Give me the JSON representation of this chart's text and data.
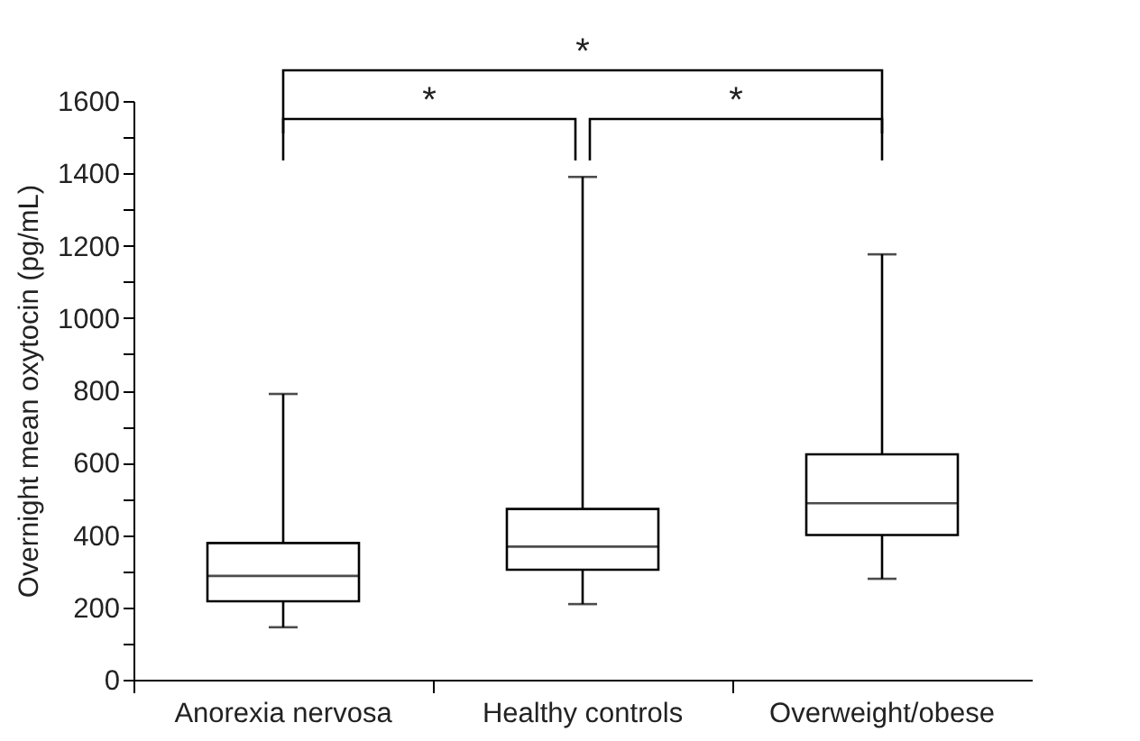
{
  "chart_data": {
    "type": "box",
    "ylabel": "Overnight mean oxytocin (pg/mL)",
    "categories": [
      "Anorexia nervosa",
      "Healthy  controls",
      "Overweight/obese"
    ],
    "boxes": [
      {
        "low": 145,
        "q1": 217,
        "median": 287,
        "q3": 378,
        "high": 790
      },
      {
        "low": 209,
        "q1": 304,
        "median": 368,
        "q3": 472,
        "high": 1390
      },
      {
        "low": 279,
        "q1": 400,
        "median": 488,
        "q3": 623,
        "high": 1176
      }
    ],
    "ylim": [
      0,
      1600
    ],
    "yticks": [
      0,
      {
        "value": 100,
        "label": null
      },
      200,
      {
        "value": 300,
        "label": null
      },
      400,
      {
        "value": 500,
        "label": null
      },
      600,
      {
        "value": 700,
        "label": null
      },
      800,
      {
        "value": 900,
        "label": null
      },
      1000,
      {
        "value": 1100,
        "label": null
      },
      1200,
      {
        "value": 1300,
        "label": null
      },
      1400,
      {
        "value": 1500,
        "label": null
      },
      1600
    ],
    "grid": false,
    "annotations": [
      "*",
      "*",
      "*"
    ]
  }
}
